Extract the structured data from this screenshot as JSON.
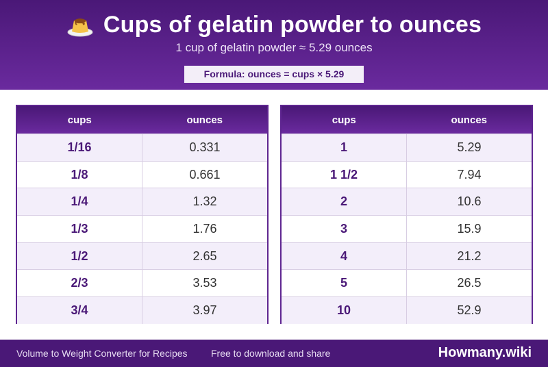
{
  "header": {
    "icon": "pudding-icon",
    "title": "Cups of gelatin powder to ounces",
    "subtitle": "1 cup of gelatin powder ≈ 5.29 ounces",
    "formula": "Formula: ounces = cups × 5.29"
  },
  "tables": [
    {
      "headers": [
        "cups",
        "ounces"
      ],
      "rows": [
        [
          "1/16",
          "0.331"
        ],
        [
          "1/8",
          "0.661"
        ],
        [
          "1/4",
          "1.32"
        ],
        [
          "1/3",
          "1.76"
        ],
        [
          "1/2",
          "2.65"
        ],
        [
          "2/3",
          "3.53"
        ],
        [
          "3/4",
          "3.97"
        ]
      ]
    },
    {
      "headers": [
        "cups",
        "ounces"
      ],
      "rows": [
        [
          "1",
          "5.29"
        ],
        [
          "1 1/2",
          "7.94"
        ],
        [
          "2",
          "10.6"
        ],
        [
          "3",
          "15.9"
        ],
        [
          "4",
          "21.2"
        ],
        [
          "5",
          "26.5"
        ],
        [
          "10",
          "52.9"
        ]
      ]
    }
  ],
  "footer": {
    "left": "Volume to Weight Converter for Recipes",
    "middle": "Free to download and share",
    "brand": "Howmany.wiki"
  },
  "colors": {
    "header_purple": "#4a1877",
    "accent_purple": "#6a2a9e",
    "row_alt": "#f3eefa"
  }
}
